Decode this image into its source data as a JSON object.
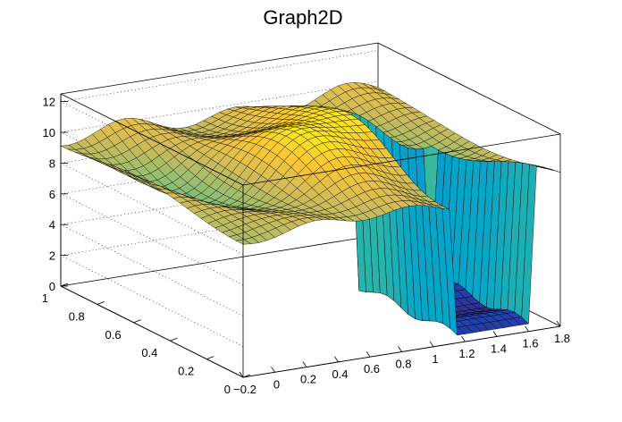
{
  "chart_data": {
    "type": "surface",
    "title": "Graph2D",
    "colormap": [
      "#352a87",
      "#0f5cdd",
      "#1481d6",
      "#06a4ca",
      "#2eb7a4",
      "#87bf77",
      "#d1bb59",
      "#fec832",
      "#f9fb0e"
    ],
    "mesh_color": "#000000",
    "xlim": [
      -0.2,
      1.8
    ],
    "ylim": [
      0,
      1
    ],
    "zlim": [
      0,
      12.5
    ],
    "x_ticks": [
      -0.2,
      0,
      0.2,
      0.4,
      0.6,
      0.8,
      1,
      1.2,
      1.4,
      1.6,
      1.8
    ],
    "x_tick_labels": [
      "−0.2",
      "0",
      "0.2",
      "0.4",
      "0.6",
      "0.8",
      "1",
      "1.2",
      "1.4",
      "1.6",
      "1.8"
    ],
    "y_ticks": [
      0,
      0.2,
      0.4,
      0.6,
      0.8,
      1
    ],
    "y_tick_labels": [
      "0",
      "0.2",
      "0.4",
      "0.6",
      "0.8",
      "1"
    ],
    "z_ticks": [
      0,
      2,
      4,
      6,
      8,
      10,
      12
    ],
    "z_tick_labels": [
      "0",
      "2",
      "4",
      "6",
      "8",
      "10",
      "12"
    ],
    "grid": true,
    "plateau_z": 9.5,
    "bump_center": [
      0.85,
      0.45
    ],
    "bump_height": 2.2,
    "drop_x_start": 1.1,
    "drop_x_end": 1.65,
    "floor_z": 0.5
  }
}
